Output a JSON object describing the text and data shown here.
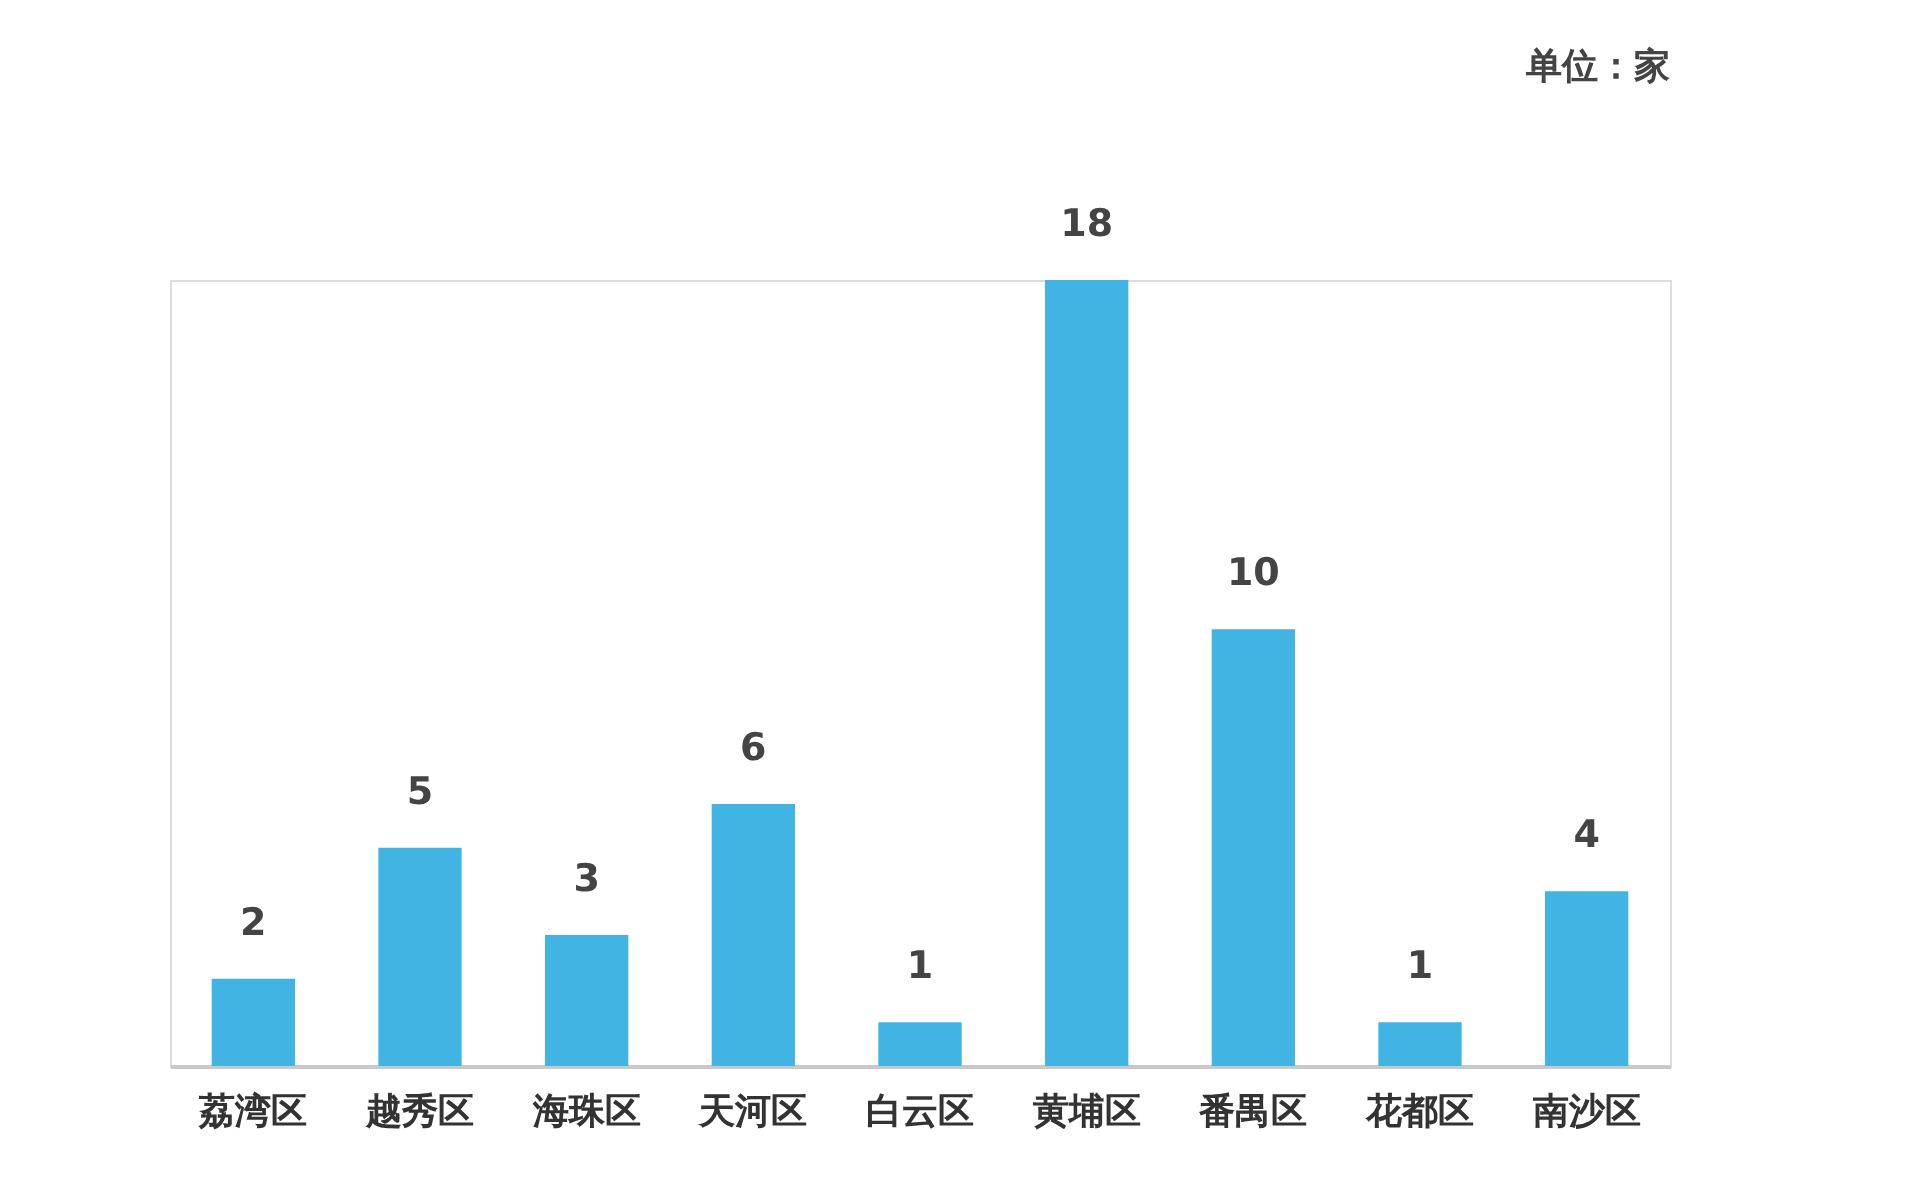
{
  "chart_data": {
    "type": "bar",
    "categories": [
      "荔湾区",
      "越秀区",
      "海珠区",
      "天河区",
      "白云区",
      "黄埔区",
      "番禺区",
      "花都区",
      "南沙区"
    ],
    "values": [
      2,
      5,
      3,
      6,
      1,
      18,
      10,
      1,
      4
    ],
    "color": "#41b4e4",
    "data_labels": true,
    "grid": false,
    "tick_labels": "x",
    "annotations": [
      "单位：家"
    ]
  }
}
